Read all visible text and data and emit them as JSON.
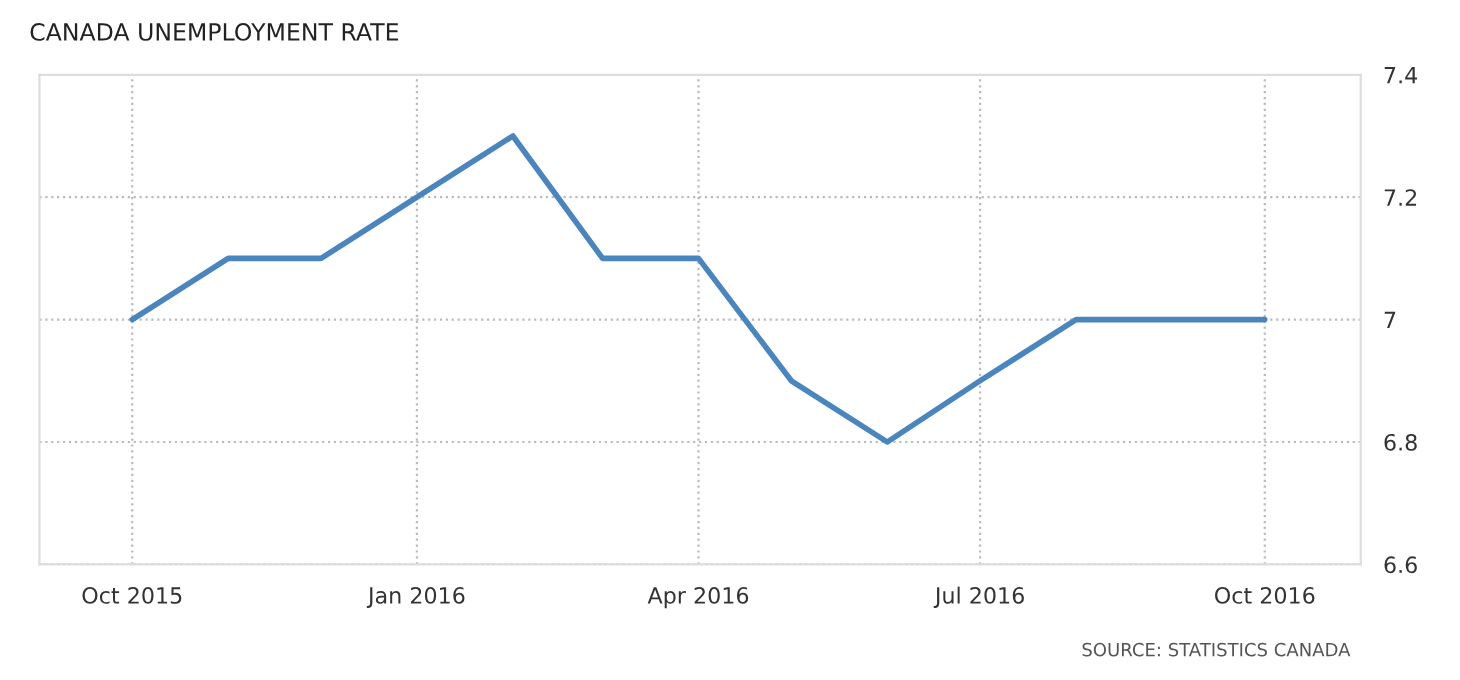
{
  "chart_data": {
    "type": "line",
    "title": "CANADA UNEMPLOYMENT RATE",
    "x": [
      "2015-10",
      "2015-11",
      "2015-12",
      "2016-01",
      "2016-02",
      "2016-03",
      "2016-04",
      "2016-05",
      "2016-06",
      "2016-07",
      "2016-08",
      "2016-09",
      "2016-10"
    ],
    "series": [
      {
        "color": "#4a86bd",
        "values": [
          7.0,
          7.1,
          7.1,
          7.2,
          7.3,
          7.1,
          7.1,
          6.9,
          6.8,
          6.9,
          7.0,
          7.0,
          7.0
        ]
      }
    ],
    "xlim": [
      "2015-09",
      "2016-11"
    ],
    "xticks": [
      {
        "value": "2015-10",
        "label": "Oct 2015"
      },
      {
        "value": "2016-01",
        "label": "Jan 2016"
      },
      {
        "value": "2016-04",
        "label": "Apr 2016"
      },
      {
        "value": "2016-07",
        "label": "Jul 2016"
      },
      {
        "value": "2016-10",
        "label": "Oct 2016"
      }
    ],
    "ylim": [
      6.6,
      7.4
    ],
    "yticks": [
      6.6,
      6.8,
      7,
      7.2,
      7.4
    ],
    "grid": true,
    "marker": "none",
    "line_style": "solid",
    "annotations": [
      "SOURCE: STATISTICS CANADA"
    ]
  }
}
